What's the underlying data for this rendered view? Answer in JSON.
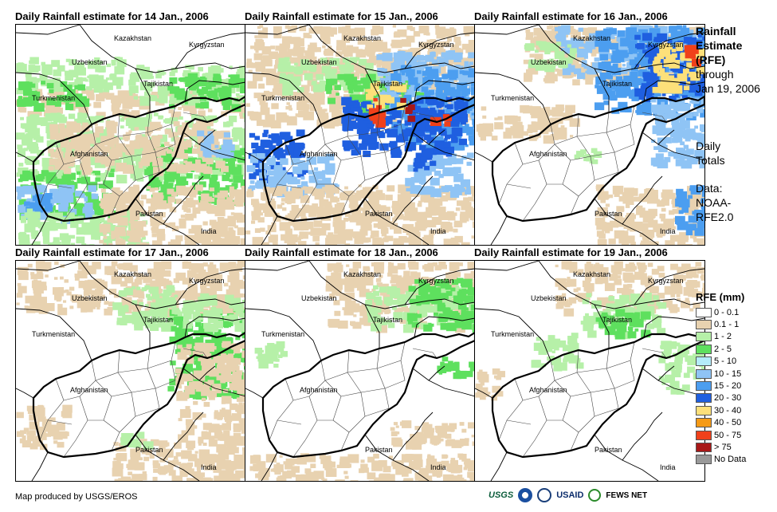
{
  "panels": [
    {
      "title": "Daily Rainfall estimate for 14 Jan., 2006",
      "key": "d14"
    },
    {
      "title": "Daily Rainfall estimate for 15 Jan., 2006",
      "key": "d15"
    },
    {
      "title": "Daily Rainfall estimate for 16 Jan., 2006",
      "key": "d16"
    },
    {
      "title": "Daily Rainfall estimate for 17 Jan., 2006",
      "key": "d17"
    },
    {
      "title": "Daily Rainfall estimate for 18 Jan., 2006",
      "key": "d18"
    },
    {
      "title": "Daily Rainfall estimate for 19 Jan., 2006",
      "key": "d19"
    }
  ],
  "country_labels": {
    "kazakhstan": "Kazakhstan",
    "kyrgyzstan": "Kyrgyzstan",
    "uzbekistan": "Uzbekistan",
    "tajikistan": "Tajikistan",
    "turkmenistan": "Turkmenistan",
    "afghanistan": "Afghanistan",
    "pakistan": "Pakistan",
    "india": "India"
  },
  "side_text": {
    "title_line1": "Rainfall",
    "title_line2": "Estimate",
    "title_line3": "(RFE)",
    "through": "through",
    "date": "Jan 19, 2006",
    "daily": "Daily",
    "totals": "Totals",
    "data": "Data:",
    "source1": "NOAA-",
    "source2": "RFE2.0"
  },
  "legend": {
    "title": "RFE (mm)",
    "items": [
      {
        "label": "0 - 0.1",
        "color": "#ffffff"
      },
      {
        "label": "0.1 - 1",
        "color": "#e8d2b0"
      },
      {
        "label": "1 - 2",
        "color": "#b6f0a8"
      },
      {
        "label": "2 - 5",
        "color": "#5ee05e"
      },
      {
        "label": "5 - 10",
        "color": "#b4ecfa"
      },
      {
        "label": "10 - 15",
        "color": "#8fc4f5"
      },
      {
        "label": "15 - 20",
        "color": "#4c9ef0"
      },
      {
        "label": "20 - 30",
        "color": "#1f5fe0"
      },
      {
        "label": "30 - 40",
        "color": "#fde07a"
      },
      {
        "label": "40 - 50",
        "color": "#f59a16"
      },
      {
        "label": "50 - 75",
        "color": "#f0401a"
      },
      {
        "label": "> 75",
        "color": "#a81818"
      },
      {
        "label": "No Data",
        "color": "#999999"
      }
    ]
  },
  "footer": "Map produced by USGS/EROS",
  "logos": {
    "usgs": "USGS",
    "usaid": "USAID",
    "fewsnet": "FEWS NET"
  }
}
